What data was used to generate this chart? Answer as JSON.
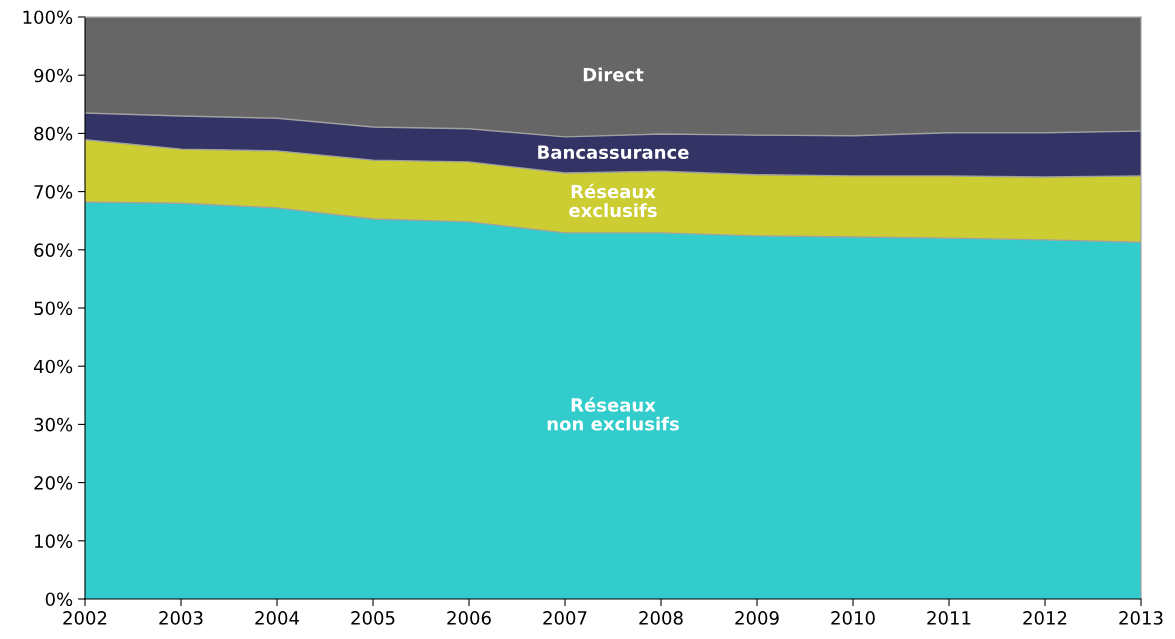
{
  "chart_data": {
    "type": "area",
    "stacked": true,
    "x": [
      2002,
      2003,
      2004,
      2005,
      2006,
      2007,
      2008,
      2009,
      2010,
      2011,
      2012,
      2013
    ],
    "series": [
      {
        "name": "Réseaux\nnon exclusifs",
        "color": "#33cccc",
        "values": [
          68.2,
          68.0,
          67.2,
          65.3,
          64.8,
          62.9,
          62.9,
          62.4,
          62.2,
          62.0,
          61.7,
          61.3
        ]
      },
      {
        "name": "Réseaux\nexclusifs",
        "color": "#cccc33",
        "values": [
          10.7,
          9.3,
          9.8,
          10.1,
          10.3,
          10.3,
          10.6,
          10.5,
          10.5,
          10.7,
          10.8,
          11.4
        ]
      },
      {
        "name": "Bancassurance",
        "color": "#333366",
        "values": [
          4.6,
          5.7,
          5.6,
          5.7,
          5.7,
          6.2,
          6.4,
          6.8,
          6.9,
          7.4,
          7.6,
          7.7
        ]
      },
      {
        "name": "Direct",
        "color": "#666666",
        "values": [
          16.5,
          17.0,
          17.4,
          18.9,
          19.2,
          20.6,
          20.1,
          20.3,
          20.4,
          19.9,
          19.9,
          19.6
        ]
      }
    ],
    "xlim": [
      2002,
      2013
    ],
    "xticks": [
      2002,
      2003,
      2004,
      2005,
      2006,
      2007,
      2008,
      2009,
      2010,
      2011,
      2012,
      2013
    ],
    "ylim": [
      0,
      100
    ],
    "yticks": [
      {
        "value": 0,
        "label": "0%"
      },
      {
        "value": 10,
        "label": "10%"
      },
      {
        "value": 20,
        "label": "20%"
      },
      {
        "value": 30,
        "label": "30%"
      },
      {
        "value": 40,
        "label": "40%"
      },
      {
        "value": 50,
        "label": "50%"
      },
      {
        "value": 60,
        "label": "60%"
      },
      {
        "value": 70,
        "label": "70%"
      },
      {
        "value": 80,
        "label": "80%"
      },
      {
        "value": 90,
        "label": "90%"
      },
      {
        "value": 100,
        "label": "100%"
      }
    ],
    "grid": false,
    "legend": false
  }
}
